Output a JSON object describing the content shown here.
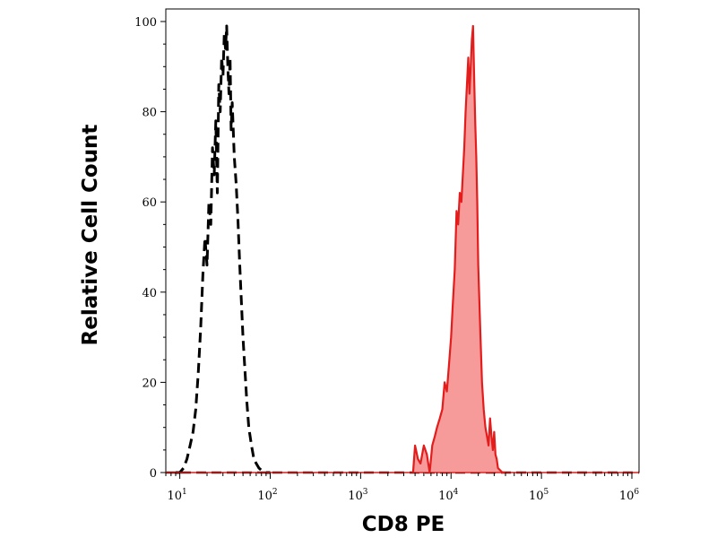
{
  "chart_data": {
    "type": "area",
    "xlabel": "CD8 PE",
    "ylabel": "Relative Cell Count",
    "x_scale": "log",
    "xlim": [
      7,
      1200000
    ],
    "ylim": [
      0,
      100
    ],
    "x_ticks": [
      {
        "value": 10,
        "base": "10",
        "exp": "1"
      },
      {
        "value": 100,
        "base": "10",
        "exp": "2"
      },
      {
        "value": 1000,
        "base": "10",
        "exp": "3"
      },
      {
        "value": 10000,
        "base": "10",
        "exp": "4"
      },
      {
        "value": 100000,
        "base": "10",
        "exp": "5"
      },
      {
        "value": 1000000,
        "base": "10",
        "exp": "6"
      }
    ],
    "y_ticks": [
      0,
      20,
      40,
      60,
      80,
      100
    ],
    "grid": false,
    "series": [
      {
        "style": "dashed",
        "color": "#000000",
        "fill": "none",
        "x": [
          9,
          10,
          11,
          12,
          13,
          14,
          15,
          16,
          17,
          18,
          19,
          20,
          21,
          22,
          23,
          24,
          25,
          26,
          27,
          28,
          29,
          30,
          31,
          32,
          33,
          34,
          35,
          36,
          37,
          38,
          40,
          42,
          44,
          46,
          48,
          50,
          52,
          55,
          58,
          62,
          66,
          70,
          75,
          80,
          90,
          100
        ],
        "y": [
          0,
          0,
          1,
          3,
          6,
          9,
          14,
          22,
          32,
          44,
          52,
          46,
          60,
          55,
          72,
          66,
          78,
          62,
          86,
          80,
          92,
          88,
          97,
          94,
          99,
          90,
          84,
          92,
          76,
          82,
          70,
          64,
          56,
          46,
          38,
          30,
          24,
          16,
          10,
          6,
          3,
          2,
          1,
          0.5,
          0,
          0
        ]
      },
      {
        "style": "solid",
        "color": "#e31c1c",
        "fill": "#f79a9a",
        "x": [
          3800,
          4000,
          4300,
          4600,
          5000,
          5400,
          5800,
          6200,
          6600,
          7000,
          7500,
          8000,
          8500,
          9000,
          9500,
          10000,
          10500,
          11000,
          11500,
          12000,
          12500,
          13000,
          13500,
          14000,
          14500,
          15000,
          15500,
          16000,
          16500,
          17000,
          17500,
          18000,
          18500,
          19000,
          19500,
          20000,
          21000,
          22000,
          23000,
          24000,
          25000,
          26000,
          27000,
          28000,
          29000,
          30000,
          31000,
          32000,
          33000,
          35000,
          37000,
          40000
        ],
        "y": [
          0,
          6,
          3,
          2,
          6,
          4,
          0,
          6,
          8,
          10,
          12,
          14,
          20,
          18,
          24,
          30,
          38,
          45,
          58,
          55,
          62,
          60,
          66,
          72,
          80,
          86,
          92,
          84,
          90,
          96,
          99,
          88,
          78,
          70,
          60,
          46,
          32,
          20,
          14,
          10,
          8,
          6,
          12,
          8,
          5,
          9,
          4,
          3,
          1,
          0.5,
          0,
          0
        ]
      }
    ]
  }
}
